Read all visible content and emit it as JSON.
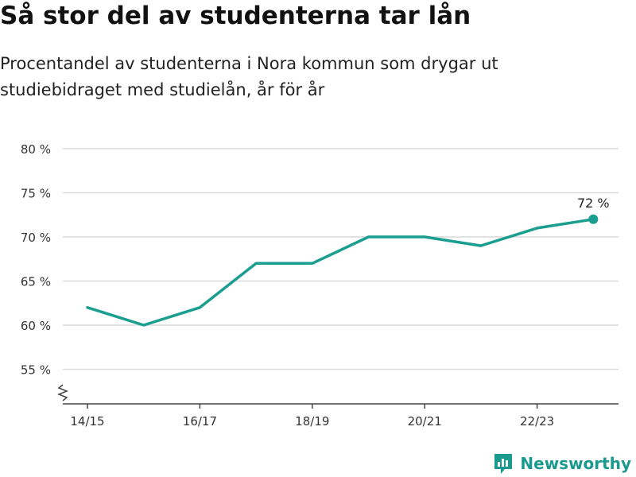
{
  "header": {
    "title": "Så stor del av studenterna tar lån",
    "subtitle_line1": "Procentandel av studenterna i Nora kommun som drygar ut",
    "subtitle_line2": "studiebidraget med studielån, år för år"
  },
  "footer": {
    "brand": "Newsworthy",
    "logo_icon": "newsworthy-logo-icon"
  },
  "colors": {
    "series": "#1a9e8f",
    "grid": "#d9d9d9",
    "axis": "#444444",
    "brand": "#1a9a8e"
  },
  "chart_data": {
    "type": "line",
    "title": "Så stor del av studenterna tar lån",
    "x": [
      "14/15",
      "15/16",
      "16/17",
      "17/18",
      "18/19",
      "19/20",
      "20/21",
      "21/22",
      "22/23",
      "23/24"
    ],
    "series": [
      {
        "values": [
          62,
          60,
          62,
          67,
          67,
          70,
          70,
          69,
          71,
          72
        ]
      }
    ],
    "x_tick_labels": [
      "14/15",
      "16/17",
      "18/19",
      "20/21",
      "22/23"
    ],
    "y_ticks": [
      55,
      60,
      65,
      70,
      75,
      80
    ],
    "y_tick_labels": [
      "55 %",
      "60 %",
      "65 %",
      "70 %",
      "75 %",
      "80 %"
    ],
    "ylim": [
      51,
      80
    ],
    "y_axis_break": true,
    "grid": "horizontal",
    "end_label": "72 %",
    "xlabel": "",
    "ylabel": ""
  }
}
